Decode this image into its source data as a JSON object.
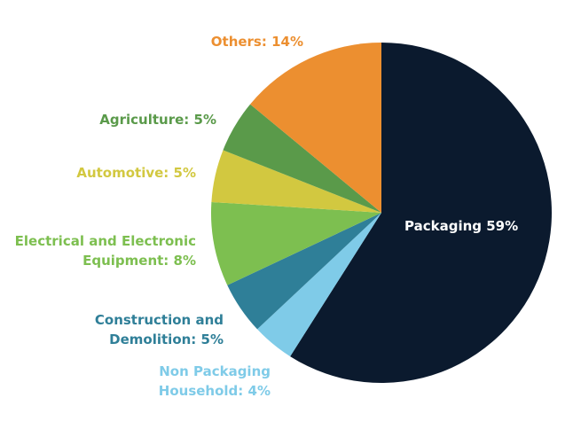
{
  "chart_data": {
    "type": "pie",
    "start_angle": "12 o'clock",
    "direction": "clockwise",
    "slices": [
      {
        "label": "Packaging 59%",
        "name": "Packaging",
        "value": 59,
        "color": "#0b1a2e",
        "label_color": "#ffffff"
      },
      {
        "label_lines": [
          "Non Packaging",
          "Household: 4%"
        ],
        "name": "Non Packaging Household",
        "value": 4,
        "color": "#7fcbe8",
        "label_color": "#7fcbe8"
      },
      {
        "label_lines": [
          "Construction and",
          "Demolition: 5%"
        ],
        "name": "Construction and Demolition",
        "value": 5,
        "color": "#2f7f98",
        "label_color": "#2f7f98"
      },
      {
        "label_lines": [
          "Electrical and Electronic",
          "Equipment: 8%"
        ],
        "name": "Electrical and Electronic Equipment",
        "value": 8,
        "color": "#7dbf50",
        "label_color": "#7dbf50"
      },
      {
        "label": "Automotive: 5%",
        "name": "Automotive",
        "value": 5,
        "color": "#d2c840",
        "label_color": "#d2c840"
      },
      {
        "label": "Agriculture: 5%",
        "name": "Agriculture",
        "value": 5,
        "color": "#5a9a4a",
        "label_color": "#5a9a4a"
      },
      {
        "label": "Others: 14%",
        "name": "Others",
        "value": 14,
        "color": "#ec8f30",
        "label_color": "#ec8f30"
      }
    ]
  }
}
